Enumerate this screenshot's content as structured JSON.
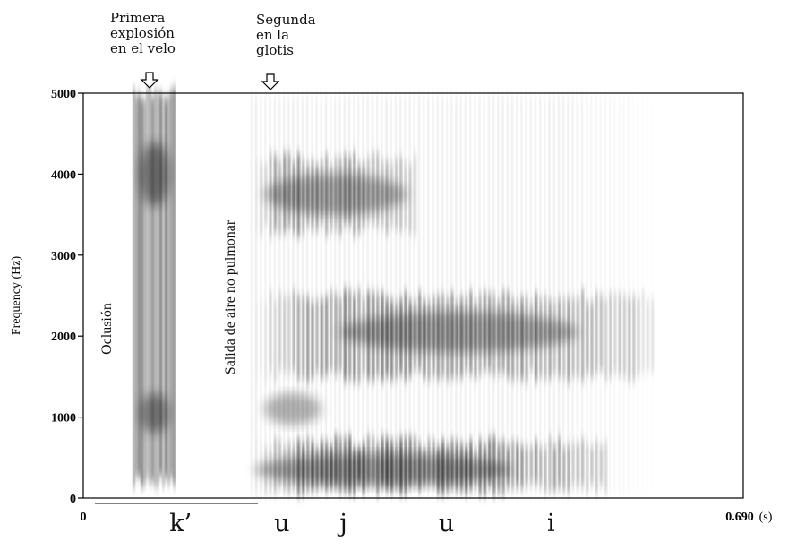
{
  "chart_data": {
    "type": "heatmap",
    "title": "",
    "ylabel": "Frequency (Hz)",
    "xlabel": "",
    "x_start_label": "0",
    "x_end_label": "0.690",
    "x_unit_label": "(s)",
    "xlim": [
      0,
      0.69
    ],
    "ylim": [
      0,
      5000
    ],
    "yticks": [
      0,
      1000,
      2000,
      3000,
      4000,
      5000
    ],
    "ytick_labels": [
      "0",
      "1000",
      "2000",
      "3000",
      "4000",
      "5000"
    ],
    "annotations": {
      "first_burst": [
        "Primera",
        "explosión",
        "en el velo"
      ],
      "second_burst": [
        "Segunda",
        "en la",
        "glotis"
      ],
      "occlusion": "Oclusión",
      "non_pulmonic": "Salida de aire no pulmonar"
    },
    "segments": [
      {
        "label": "k’",
        "time": 0.1
      },
      {
        "label": "u",
        "time": 0.21
      },
      {
        "label": "j",
        "time": 0.279
      },
      {
        "label": "u",
        "time": 0.383
      },
      {
        "label": "i",
        "time": 0.497
      }
    ],
    "energy_regions": [
      {
        "name": "burst-velar",
        "t0": 0.052,
        "t1": 0.096,
        "f0": 200,
        "f1": 5000,
        "intensity": 0.75
      },
      {
        "name": "vowel-formant-f1",
        "t0": 0.176,
        "t1": 0.55,
        "f0": 100,
        "f1": 700,
        "intensity": 0.85
      },
      {
        "name": "vowel-formant-f2",
        "t0": 0.176,
        "t1": 0.6,
        "f0": 1500,
        "f1": 2500,
        "intensity": 0.7
      },
      {
        "name": "vowel-formant-f3",
        "t0": 0.176,
        "t1": 0.35,
        "f0": 3300,
        "f1": 4200,
        "intensity": 0.6
      }
    ]
  }
}
